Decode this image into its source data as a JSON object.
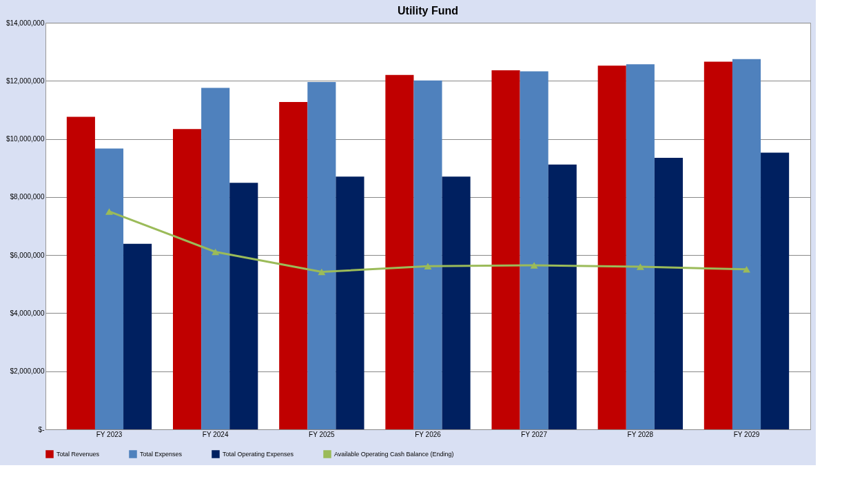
{
  "chart_data": {
    "type": "bar",
    "title": "Utility Fund",
    "categories": [
      "FY 2023",
      "FY 2024",
      "FY 2025",
      "FY 2026",
      "FY 2027",
      "FY 2028",
      "FY 2029"
    ],
    "series": [
      {
        "name": "Total Revenues",
        "color": "#c00000",
        "values": [
          10760000,
          10340000,
          11270000,
          12200000,
          12360000,
          12520000,
          12660000
        ]
      },
      {
        "name": "Total Expenses",
        "color": "#4f81bd",
        "values": [
          9670000,
          11760000,
          11960000,
          12010000,
          12330000,
          12570000,
          12750000
        ]
      },
      {
        "name": "Total Operating Expenses",
        "color": "#002060",
        "values": [
          6390000,
          8490000,
          8700000,
          8700000,
          9120000,
          9350000,
          9530000
        ]
      },
      {
        "name": "Available Operating Cash Balance (Ending)",
        "color": "#9bbb59",
        "type": "line",
        "marker": "triangle",
        "values": [
          7500000,
          6110000,
          5420000,
          5620000,
          5650000,
          5600000,
          5510000
        ]
      }
    ],
    "ylim": [
      0,
      14000000
    ],
    "yticks": [
      {
        "value": 0,
        "label": "$-"
      },
      {
        "value": 2000000,
        "label": "$2,000,000"
      },
      {
        "value": 4000000,
        "label": "$4,000,000"
      },
      {
        "value": 6000000,
        "label": "$6,000,000"
      },
      {
        "value": 8000000,
        "label": "$8,000,000"
      },
      {
        "value": 10000000,
        "label": "$10,000,000"
      },
      {
        "value": 12000000,
        "label": "$12,000,000"
      },
      {
        "value": 14000000,
        "label": "$14,000,000"
      }
    ],
    "grid": "y",
    "legend": "bottom"
  }
}
